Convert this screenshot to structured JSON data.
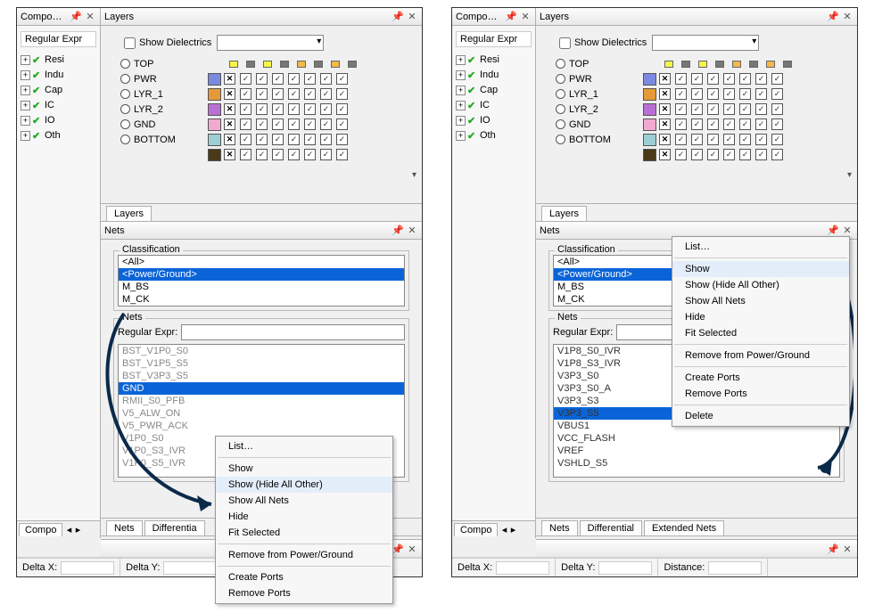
{
  "panels": {
    "components_title": "Compo…",
    "layers_title": "Layers",
    "nets_title": "Nets"
  },
  "components": {
    "filter_label": "Regular Expr",
    "items": [
      "Resi",
      "Indu",
      "Cap",
      "IC",
      "IO",
      "Oth"
    ],
    "tab": "Compo"
  },
  "layers": {
    "show_dielectrics": "Show Dielectrics",
    "names": [
      "TOP",
      "PWR",
      "LYR_1",
      "LYR_2",
      "GND",
      "BOTTOM"
    ],
    "swatches": [
      "#7b89e0",
      "#e59a3a",
      "#b96fd4",
      "#f2a9d0",
      "#9ccfd4",
      "#4a3a1a"
    ],
    "icon_row_colors": [
      "#f5f54a",
      "#777",
      "#f5f54a",
      "#777",
      "#f5b84a",
      "#777",
      "#f5b84a",
      "#777"
    ],
    "tab": "Layers"
  },
  "nets": {
    "classification_legend": "Classification",
    "classification_items": [
      "<All>",
      "<Power/Ground>",
      "M_BS",
      "M_CK"
    ],
    "classification_selected_index": 1,
    "nets_legend": "Nets",
    "regex_label": "Regular Expr:",
    "left_nets": [
      "BST_V1P0_S0",
      "BST_V1P5_S5",
      "BST_V3P3_S5",
      "GND",
      "RMII_S0_PFB",
      "V5_ALW_ON",
      "V5_PWR_ACK",
      "V1P0_S0",
      "V1P0_S3_IVR",
      "V1P0_S5_IVR"
    ],
    "left_selected_index": 3,
    "right_nets": [
      "V1P8_S0_IVR",
      "V1P8_S3_IVR",
      "V3P3_S0",
      "V3P3_S0_A",
      "V3P3_S3",
      "V3P3_S5",
      "VBUS1",
      "VCC_FLASH",
      "VREF",
      "VSHLD_S5"
    ],
    "right_selected_index": 5,
    "tabs_left": [
      "Nets",
      "Differentia"
    ],
    "tabs_right": [
      "Nets",
      "Differential",
      "Extended Nets"
    ]
  },
  "ctxmenu": {
    "items": [
      "List…",
      "Show",
      "Show (Hide All Other)",
      "Show All Nets",
      "Hide",
      "Fit Selected",
      "Remove from Power/Ground",
      "Create Ports",
      "Remove Ports",
      "Delete"
    ],
    "left_hover_index": 2,
    "right_hover_index": 1
  },
  "status": {
    "dx": "Delta X:",
    "dy": "Delta Y:",
    "dist": "Distance:"
  },
  "arrow_color": "#0b2a4a"
}
